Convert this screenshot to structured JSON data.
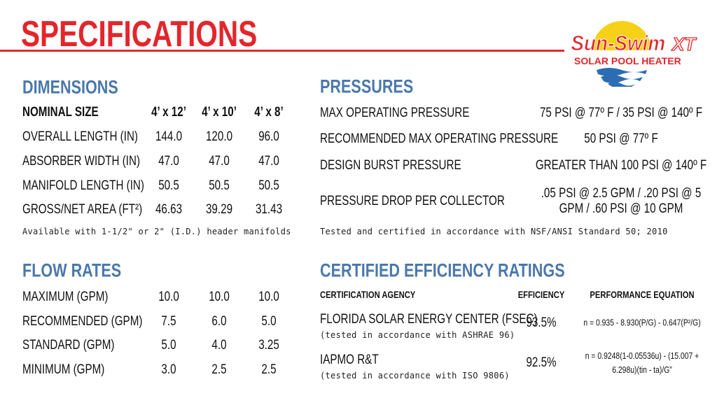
{
  "header": {
    "title": "SPECIFICATIONS",
    "logo": {
      "brand": "Sun-Swim",
      "suffix": "XT",
      "tagline": "SOLAR POOL HEATER"
    }
  },
  "dimensions": {
    "title": "DIMENSIONS",
    "columns": [
      "NOMINAL SIZE",
      "4’ x 12’",
      "4’ x 10’",
      "4’ x 8’"
    ],
    "rows": [
      [
        "OVERALL LENGTH (IN)",
        "144.0",
        "120.0",
        "96.0"
      ],
      [
        "ABSORBER WIDTH (IN)",
        "47.0",
        "47.0",
        "47.0"
      ],
      [
        "MANIFOLD LENGTH (IN)",
        "50.5",
        "50.5",
        "50.5"
      ],
      [
        "GROSS/NET AREA (FT²)",
        "46.63",
        "39.29",
        "31.43"
      ]
    ],
    "note": "Available with 1-1/2\" or 2\" (I.D.) header manifolds"
  },
  "flow_rates": {
    "title": "FLOW RATES",
    "rows": [
      [
        "MAXIMUM (GPM)",
        "10.0",
        "10.0",
        "10.0"
      ],
      [
        "RECOMMENDED (GPM)",
        "7.5",
        "6.0",
        "5.0"
      ],
      [
        "STANDARD (GPM)",
        "5.0",
        "4.0",
        "3.25"
      ],
      [
        "MINIMUM (GPM)",
        "3.0",
        "2.5",
        "2.5"
      ]
    ]
  },
  "pressures": {
    "title": "PRESSURES",
    "rows": [
      [
        "MAX OPERATING PRESSURE",
        "75 PSI @ 77º F / 35 PSI @ 140º F"
      ],
      [
        "RECOMMENDED MAX OPERATING PRESSURE",
        "50 PSI @ 77º F"
      ],
      [
        "DESIGN BURST PRESSURE",
        "GREATER THAN 100 PSI @ 140º F"
      ],
      [
        "PRESSURE DROP PER COLLECTOR",
        ".05 PSI @ 2.5 GPM / .20 PSI @ 5 GPM / .60 PSI @ 10 GPM"
      ]
    ],
    "note": "Tested and certified in accordance with NSF/ANSI Standard 50; 2010"
  },
  "efficiency": {
    "title": "CERTIFIED EFFICIENCY RATINGS",
    "columns": [
      "CERTIFICATION AGENCY",
      "EFFICIENCY",
      "PERFORMANCE EQUATION"
    ],
    "rows": [
      {
        "agency": "FLORIDA SOLAR ENERGY CENTER (FSEC)",
        "detail": "(tested in accordance with ASHRAE 96)",
        "efficiency": "93.5%",
        "equation": "n = 0.935 - 8.930(P/G) - 0.647(P²/G)"
      },
      {
        "agency": "IAPMO R&T",
        "detail": "(tested in accordance with ISO 9806)",
        "efficiency": "92.5%",
        "equation": "n = 0.9248(1-0.05536u) - (15.007 + 6.298u)(tin - ta)/G”"
      }
    ]
  }
}
